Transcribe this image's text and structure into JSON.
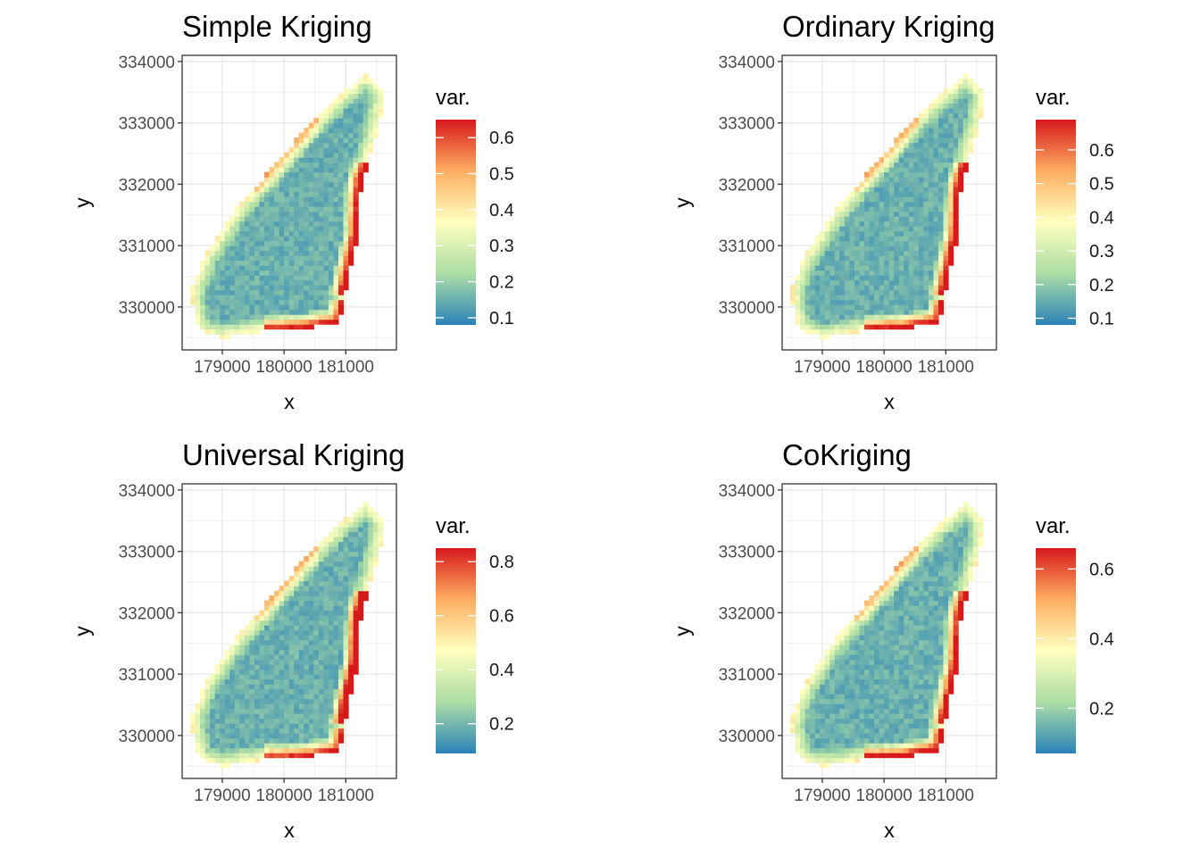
{
  "palette": [
    "#2b83ba",
    "#abdda4",
    "#ffffbf",
    "#fdae61",
    "#d7191c"
  ],
  "chart_data": [
    {
      "type": "heatmap",
      "title": "Simple Kriging",
      "xlabel": "x",
      "ylabel": "y",
      "xlim": [
        178350,
        181820
      ],
      "ylim": [
        329300,
        334100
      ],
      "x_ticks": [
        179000,
        180000,
        181000
      ],
      "x_tick_labels": [
        "179000",
        "180000",
        "181000"
      ],
      "y_ticks": [
        330000,
        331000,
        332000,
        333000,
        334000
      ],
      "y_tick_labels": [
        "330000",
        "331000",
        "332000",
        "333000",
        "334000"
      ],
      "grid": true,
      "legend": {
        "title": "var.",
        "placement": "right",
        "range": [
          0.08,
          0.65
        ],
        "ticks": [
          0.1,
          0.2,
          0.3,
          0.4,
          0.5,
          0.6
        ],
        "tick_labels": [
          "0.1",
          "0.2",
          "0.3",
          "0.4",
          "0.5",
          "0.6"
        ]
      },
      "value_range": [
        0.08,
        0.65
      ]
    },
    {
      "type": "heatmap",
      "title": "Ordinary Kriging",
      "xlabel": "x",
      "ylabel": "y",
      "xlim": [
        178350,
        181820
      ],
      "ylim": [
        329300,
        334100
      ],
      "x_ticks": [
        179000,
        180000,
        181000
      ],
      "x_tick_labels": [
        "179000",
        "180000",
        "181000"
      ],
      "y_ticks": [
        330000,
        331000,
        332000,
        333000,
        334000
      ],
      "y_tick_labels": [
        "330000",
        "331000",
        "332000",
        "333000",
        "334000"
      ],
      "grid": true,
      "legend": {
        "title": "var.",
        "placement": "right",
        "range": [
          0.08,
          0.69
        ],
        "ticks": [
          0.1,
          0.2,
          0.3,
          0.4,
          0.5,
          0.6
        ],
        "tick_labels": [
          "0.1",
          "0.2",
          "0.3",
          "0.4",
          "0.5",
          "0.6"
        ]
      },
      "value_range": [
        0.08,
        0.69
      ]
    },
    {
      "type": "heatmap",
      "title": "Universal Kriging",
      "xlabel": "x",
      "ylabel": "y",
      "xlim": [
        178350,
        181820
      ],
      "ylim": [
        329300,
        334100
      ],
      "x_ticks": [
        179000,
        180000,
        181000
      ],
      "x_tick_labels": [
        "179000",
        "180000",
        "181000"
      ],
      "y_ticks": [
        330000,
        331000,
        332000,
        333000,
        334000
      ],
      "y_tick_labels": [
        "330000",
        "331000",
        "332000",
        "333000",
        "334000"
      ],
      "grid": true,
      "legend": {
        "title": "var.",
        "placement": "right",
        "range": [
          0.09,
          0.85
        ],
        "ticks": [
          0.2,
          0.4,
          0.6,
          0.8
        ],
        "tick_labels": [
          "0.2",
          "0.4",
          "0.6",
          "0.8"
        ]
      },
      "value_range": [
        0.09,
        0.85
      ]
    },
    {
      "type": "heatmap",
      "title": "CoKriging",
      "xlabel": "x",
      "ylabel": "y",
      "xlim": [
        178350,
        181820
      ],
      "ylim": [
        329300,
        334100
      ],
      "x_ticks": [
        179000,
        180000,
        181000
      ],
      "x_tick_labels": [
        "179000",
        "180000",
        "181000"
      ],
      "y_ticks": [
        330000,
        331000,
        332000,
        333000,
        334000
      ],
      "y_tick_labels": [
        "330000",
        "331000",
        "332000",
        "333000",
        "334000"
      ],
      "grid": true,
      "legend": {
        "title": "var.",
        "placement": "right",
        "range": [
          0.07,
          0.66
        ],
        "ticks": [
          0.2,
          0.4,
          0.6
        ],
        "tick_labels": [
          "0.2",
          "0.4",
          "0.6"
        ]
      },
      "value_range": [
        0.07,
        0.66
      ]
    }
  ]
}
